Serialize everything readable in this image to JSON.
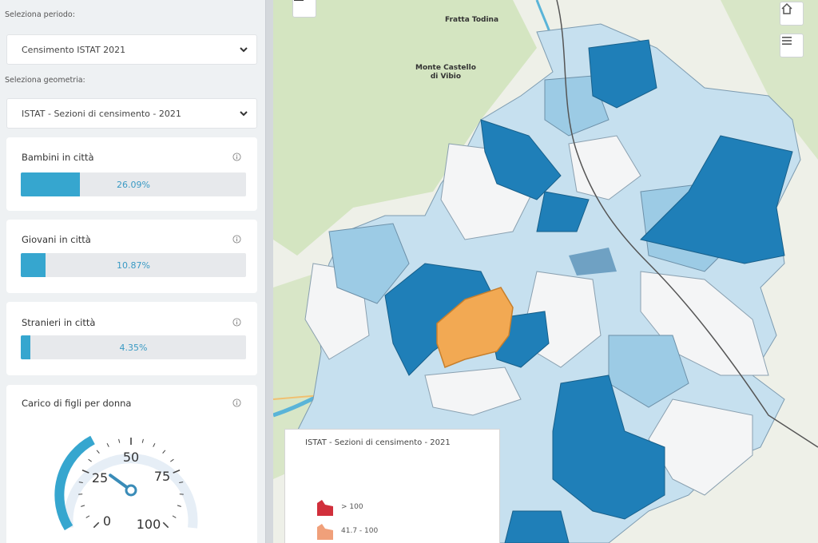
{
  "sidebar": {
    "period_label": "Seleziona periodo:",
    "period_value": "Censimento ISTAT 2021",
    "geometry_label": "Seleziona geometria:",
    "geometry_value": "ISTAT - Sezioni di censimento - 2021",
    "indicators": [
      {
        "title": "Bambini in città",
        "value_text": "26.09%",
        "value": 26.09
      },
      {
        "title": "Giovani in città",
        "value_text": "10.87%",
        "value": 10.87
      },
      {
        "title": "Stranieri in città",
        "value_text": "4.35%",
        "value": 4.35
      }
    ],
    "gauge": {
      "title": "Carico di figli per donna",
      "ticks": [
        "0",
        "25",
        "50",
        "75",
        "100"
      ],
      "min": 0,
      "max": 100,
      "needle_value": 30
    }
  },
  "map": {
    "towns": [
      {
        "name": "Fratta Todina"
      },
      {
        "name": "Monte Castello\ndi Vibio"
      }
    ],
    "legend": {
      "title": "ISTAT - Sezioni di censimento - 2021",
      "items": [
        {
          "label": "> 100",
          "color": "#d12f3b"
        },
        {
          "label": "41.7 - 100",
          "color": "#f0a07a"
        }
      ]
    },
    "colors": {
      "background": "#eef0e8",
      "forest": "#c9dfb0",
      "class_dark": "#1f7fb8",
      "class_mid": "#9ccbe5",
      "class_light": "#c6e0ef",
      "class_none": "#f4f5f6",
      "highlight": "#f2a953",
      "river": "#5ab4d8"
    },
    "icons": [
      "zoom-out-icon",
      "home-icon",
      "menu-icon"
    ]
  }
}
